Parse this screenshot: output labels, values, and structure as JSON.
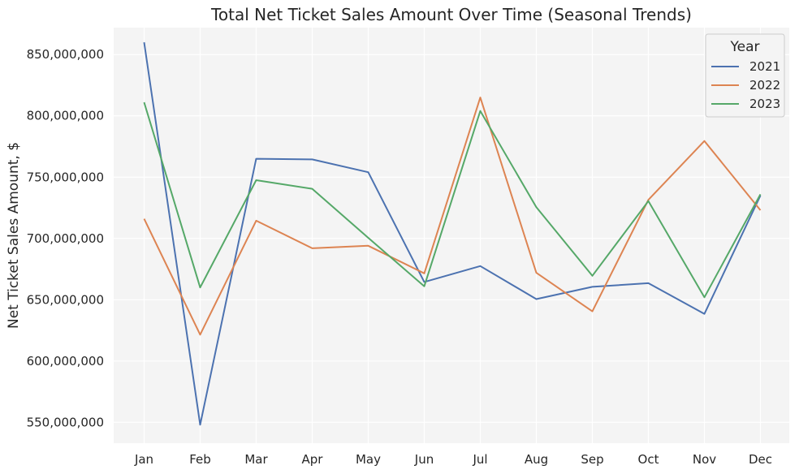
{
  "chart_data": {
    "type": "line",
    "title": "Total Net Ticket Sales Amount Over Time (Seasonal Trends)",
    "xlabel": "",
    "ylabel": "Net Ticket Sales Amount, $",
    "categories": [
      "Jan",
      "Feb",
      "Mar",
      "Apr",
      "May",
      "Jun",
      "Jul",
      "Aug",
      "Sep",
      "Oct",
      "Nov",
      "Dec"
    ],
    "ylim": [
      533000000,
      872000000
    ],
    "yticks": [
      550000000,
      600000000,
      650000000,
      700000000,
      750000000,
      800000000,
      850000000
    ],
    "ytick_labels": [
      "550,000,000",
      "600,000,000",
      "650,000,000",
      "700,000,000",
      "750,000,000",
      "800,000,000",
      "850,000,000"
    ],
    "grid": true,
    "legend": {
      "title": "Year",
      "placement": "top-right"
    },
    "series": [
      {
        "name": "2021",
        "color": "#4c72b0",
        "values": [
          860000000,
          548000000,
          765000000,
          764500000,
          754000000,
          664500000,
          677500000,
          650500000,
          660500000,
          663500000,
          638500000,
          735000000
        ]
      },
      {
        "name": "2022",
        "color": "#dd8452",
        "values": [
          716000000,
          621500000,
          714500000,
          692000000,
          694000000,
          671500000,
          815000000,
          672000000,
          640500000,
          731500000,
          779500000,
          723000000
        ]
      },
      {
        "name": "2023",
        "color": "#55a868",
        "values": [
          811000000,
          660000000,
          747500000,
          740500000,
          700500000,
          661000000,
          804000000,
          725500000,
          669500000,
          730500000,
          652000000,
          736000000
        ]
      }
    ]
  }
}
